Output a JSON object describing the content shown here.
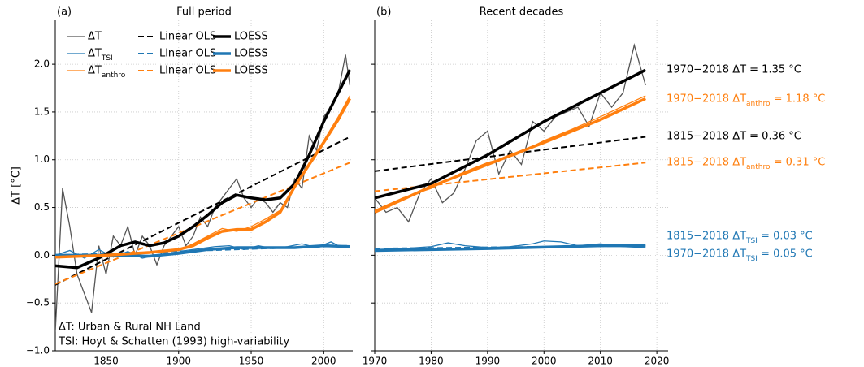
{
  "chart_data": [
    {
      "type": "line",
      "panel_label": "(a)",
      "title": "Full period",
      "ylabel": "ΔT [°C]",
      "xlim": [
        1815,
        2020
      ],
      "xticks": [
        1850,
        1900,
        1950,
        2000
      ],
      "ylim": [
        -1.0,
        2.46
      ],
      "yticks": [
        {
          "value": -1.0,
          "label": "−1.0"
        },
        {
          "value": -0.5,
          "label": "−0.5"
        },
        {
          "value": 0.0,
          "label": "0.0"
        },
        {
          "value": 0.5,
          "label": "0.5"
        },
        {
          "value": 1.0,
          "label": "1.0"
        },
        {
          "value": 1.5,
          "label": "1.5"
        },
        {
          "value": 2.0,
          "label": "2.0"
        }
      ],
      "grid": true,
      "legend": "upper left",
      "notes": [
        "ΔT: Urban & Rural NH Land",
        "TSI: Hoyt & Schatten (1993) high-variability"
      ],
      "series": [
        {
          "name": "ΔT",
          "color": "#555555",
          "linestyle": "thin",
          "x": [
            1815,
            1820,
            1825,
            1830,
            1835,
            1840,
            1845,
            1850,
            1855,
            1860,
            1865,
            1870,
            1875,
            1880,
            1885,
            1890,
            1895,
            1900,
            1905,
            1910,
            1915,
            1920,
            1925,
            1930,
            1935,
            1940,
            1945,
            1950,
            1955,
            1960,
            1965,
            1970,
            1975,
            1980,
            1985,
            1990,
            1995,
            2000,
            2005,
            2010,
            2015,
            2018
          ],
          "values": [
            -0.8,
            0.7,
            0.3,
            -0.2,
            -0.4,
            -0.6,
            0.1,
            -0.2,
            0.2,
            0.1,
            0.3,
            0.0,
            0.2,
            0.1,
            -0.1,
            0.1,
            0.2,
            0.3,
            0.1,
            0.2,
            0.4,
            0.3,
            0.5,
            0.6,
            0.7,
            0.8,
            0.6,
            0.5,
            0.6,
            0.55,
            0.45,
            0.55,
            0.5,
            0.8,
            0.7,
            1.25,
            1.1,
            1.45,
            1.55,
            1.7,
            2.1,
            1.78
          ]
        },
        {
          "name": "ΔTTSI",
          "color": "#1f77b4",
          "linestyle": "thin",
          "x": [
            1815,
            1825,
            1835,
            1845,
            1855,
            1865,
            1875,
            1885,
            1895,
            1905,
            1915,
            1925,
            1935,
            1945,
            1955,
            1965,
            1975,
            1985,
            1995,
            2005,
            2010,
            2018
          ],
          "values": [
            0.0,
            0.05,
            -0.03,
            0.06,
            -0.02,
            0.04,
            -0.03,
            0.0,
            0.02,
            0.05,
            0.07,
            0.09,
            0.1,
            0.06,
            0.1,
            0.07,
            0.09,
            0.12,
            0.08,
            0.14,
            0.1,
            0.09
          ]
        },
        {
          "name": "ΔTanthro",
          "color": "#ff7f0e",
          "linestyle": "thin",
          "x": [
            1815,
            1850,
            1880,
            1900,
            1910,
            1920,
            1930,
            1940,
            1950,
            1960,
            1970,
            1980,
            1990,
            2000,
            2010,
            2018
          ],
          "values": [
            -0.02,
            0.0,
            0.02,
            0.05,
            0.12,
            0.2,
            0.28,
            0.25,
            0.3,
            0.38,
            0.47,
            0.7,
            0.97,
            1.2,
            1.45,
            1.67
          ]
        },
        {
          "name": "Linear OLS",
          "color": "#000000",
          "linestyle": "dashed",
          "x": [
            1815,
            2018
          ],
          "values": [
            -0.31,
            1.24
          ]
        },
        {
          "name": "Linear OLS",
          "color": "#1f77b4",
          "linestyle": "dashed",
          "x": [
            1815,
            2018
          ],
          "values": [
            0.0,
            0.1
          ]
        },
        {
          "name": "Linear OLS",
          "color": "#ff7f0e",
          "linestyle": "dashed",
          "x": [
            1815,
            2018
          ],
          "values": [
            -0.3,
            0.97
          ]
        },
        {
          "name": "LOESS",
          "color": "#000000",
          "linestyle": "thick",
          "x": [
            1815,
            1830,
            1845,
            1860,
            1870,
            1880,
            1890,
            1900,
            1910,
            1920,
            1930,
            1940,
            1950,
            1960,
            1970,
            1980,
            1990,
            2000,
            2010,
            2018
          ],
          "values": [
            -0.11,
            -0.13,
            -0.03,
            0.1,
            0.14,
            0.1,
            0.13,
            0.2,
            0.3,
            0.42,
            0.55,
            0.63,
            0.6,
            0.58,
            0.6,
            0.75,
            1.05,
            1.4,
            1.7,
            1.94
          ]
        },
        {
          "name": "LOESS",
          "color": "#1f77b4",
          "linestyle": "thick",
          "x": [
            1815,
            1850,
            1880,
            1900,
            1920,
            1940,
            1960,
            1980,
            2000,
            2018
          ],
          "values": [
            0.0,
            0.0,
            -0.01,
            0.02,
            0.06,
            0.08,
            0.08,
            0.08,
            0.1,
            0.09
          ]
        },
        {
          "name": "LOESS",
          "color": "#ff7f0e",
          "linestyle": "thick",
          "x": [
            1815,
            1850,
            1880,
            1900,
            1910,
            1920,
            1930,
            1940,
            1950,
            1960,
            1970,
            1980,
            1990,
            2000,
            2010,
            2018
          ],
          "values": [
            -0.02,
            0.0,
            0.03,
            0.06,
            0.1,
            0.18,
            0.25,
            0.27,
            0.27,
            0.35,
            0.45,
            0.72,
            0.95,
            1.18,
            1.42,
            1.64
          ]
        }
      ]
    },
    {
      "type": "line",
      "panel_label": "(b)",
      "title": "Recent decades",
      "xlim": [
        1970,
        2022
      ],
      "xticks": [
        1970,
        1980,
        1990,
        2000,
        2010,
        2020
      ],
      "ylim": [
        -1.0,
        2.46
      ],
      "yticks": [
        -1.0,
        -0.5,
        0.0,
        0.5,
        1.0,
        1.5,
        2.0
      ],
      "grid": true,
      "annotations": [
        {
          "text": "1970−2018 ΔT = 1.35 °C",
          "color": "#000000"
        },
        {
          "text": "1970−2018 ΔTanthro = 1.18 °C",
          "color": "#ff7f0e"
        },
        {
          "text": "1815−2018 ΔT = 0.36 °C",
          "color": "#000000"
        },
        {
          "text": "1815−2018 ΔTanthro = 0.31 °C",
          "color": "#ff7f0e"
        },
        {
          "text": "1815−2018 ΔTTSI = 0.03 °C",
          "color": "#1f77b4"
        },
        {
          "text": "1970−2018 ΔTTSI = 0.05 °C",
          "color": "#1f77b4"
        }
      ],
      "series": [
        {
          "color": "#555555",
          "linestyle": "thin",
          "x": [
            1970,
            1972,
            1974,
            1976,
            1978,
            1980,
            1982,
            1984,
            1986,
            1988,
            1990,
            1992,
            1994,
            1996,
            1998,
            2000,
            2002,
            2004,
            2006,
            2008,
            2010,
            2012,
            2014,
            2016,
            2018
          ],
          "values": [
            0.6,
            0.45,
            0.5,
            0.35,
            0.65,
            0.8,
            0.55,
            0.65,
            0.9,
            1.2,
            1.3,
            0.85,
            1.1,
            0.95,
            1.4,
            1.3,
            1.45,
            1.5,
            1.55,
            1.35,
            1.7,
            1.55,
            1.7,
            2.2,
            1.78
          ]
        },
        {
          "color": "#1f77b4",
          "linestyle": "thin",
          "x": [
            1970,
            1975,
            1980,
            1983,
            1986,
            1990,
            1994,
            1998,
            2000,
            2003,
            2006,
            2010,
            2014,
            2018
          ],
          "values": [
            0.06,
            0.07,
            0.09,
            0.13,
            0.1,
            0.08,
            0.09,
            0.12,
            0.15,
            0.14,
            0.1,
            0.12,
            0.09,
            0.08
          ]
        },
        {
          "color": "#ff7f0e",
          "linestyle": "thin",
          "x": [
            1970,
            1975,
            1980,
            1985,
            1990,
            1995,
            2000,
            2005,
            2010,
            2018
          ],
          "values": [
            0.47,
            0.6,
            0.7,
            0.85,
            0.97,
            1.05,
            1.2,
            1.32,
            1.45,
            1.67
          ]
        },
        {
          "color": "#000000",
          "linestyle": "dashed",
          "x": [
            1970,
            2018
          ],
          "values": [
            0.88,
            1.24
          ]
        },
        {
          "color": "#1f77b4",
          "linestyle": "dashed",
          "x": [
            1970,
            2018
          ],
          "values": [
            0.07,
            0.1
          ]
        },
        {
          "color": "#ff7f0e",
          "linestyle": "dashed",
          "x": [
            1970,
            2018
          ],
          "values": [
            0.67,
            0.97
          ]
        },
        {
          "color": "#000000",
          "linestyle": "thick",
          "x": [
            1970,
            1980,
            1990,
            2000,
            2010,
            2018
          ],
          "values": [
            0.6,
            0.75,
            1.05,
            1.4,
            1.7,
            1.94
          ]
        },
        {
          "color": "#1f77b4",
          "linestyle": "thick",
          "x": [
            1970,
            1990,
            2010,
            2018
          ],
          "values": [
            0.05,
            0.07,
            0.1,
            0.1
          ]
        },
        {
          "color": "#ff7f0e",
          "linestyle": "thick",
          "x": [
            1970,
            1980,
            1990,
            2000,
            2010,
            2018
          ],
          "values": [
            0.45,
            0.72,
            0.95,
            1.18,
            1.42,
            1.64
          ]
        }
      ]
    }
  ]
}
